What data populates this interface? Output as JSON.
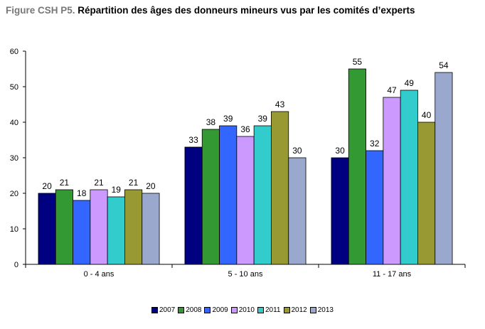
{
  "title": {
    "prefix": "Figure CSH P5.",
    "text": "Répartition des âges des donneurs mineurs vus par les comités d’experts"
  },
  "chart_data": {
    "type": "bar",
    "categories": [
      "0 - 4 ans",
      "5 - 10 ans",
      "11 - 17 ans"
    ],
    "series": [
      {
        "name": "2007",
        "color": "#000080",
        "values": [
          20,
          33,
          30
        ]
      },
      {
        "name": "2008",
        "color": "#339933",
        "values": [
          21,
          38,
          55
        ]
      },
      {
        "name": "2009",
        "color": "#3366FF",
        "values": [
          18,
          39,
          32
        ]
      },
      {
        "name": "2010",
        "color": "#CC99FF",
        "values": [
          21,
          36,
          47
        ]
      },
      {
        "name": "2011",
        "color": "#33CCCC",
        "values": [
          19,
          39,
          49
        ]
      },
      {
        "name": "2012",
        "color": "#999933",
        "values": [
          21,
          43,
          40
        ]
      },
      {
        "name": "2013",
        "color": "#99A8CC",
        "values": [
          20,
          30,
          54
        ]
      }
    ],
    "yticks": [
      0,
      10,
      20,
      30,
      40,
      50,
      60
    ],
    "ylim": [
      0,
      60
    ],
    "grid": false,
    "legend_position": "bottom",
    "xlabel": "",
    "ylabel": ""
  }
}
